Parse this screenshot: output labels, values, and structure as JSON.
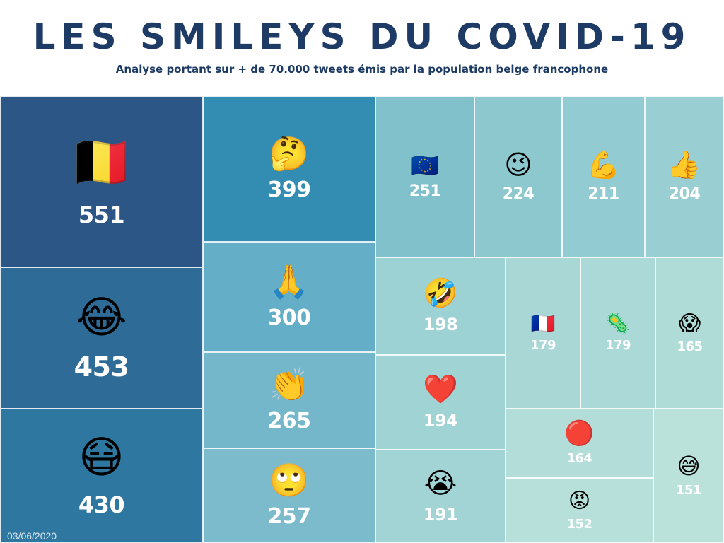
{
  "title": "LES SMILEYS DU COVID-19",
  "subtitle": "Analyse portant sur + de 70.000 tweets émis par la population belge francophone",
  "date": "03/06/2020",
  "chart_data": {
    "type": "treemap",
    "title": "LES SMILEYS DU COVID-19",
    "subtitle": "Analyse portant sur + de 70.000 tweets émis par la population belge francophone",
    "items": [
      {
        "emoji": "🇧🇪",
        "icon": "belgium-flag",
        "value": 551,
        "color": "#2b5686"
      },
      {
        "emoji": "😂",
        "icon": "tears-of-joy-face",
        "value": 453,
        "color": "#2f6b97"
      },
      {
        "emoji": "😷",
        "icon": "medical-mask-face",
        "value": 430,
        "color": "#2e77a0"
      },
      {
        "emoji": "🤔",
        "icon": "thinking-face",
        "value": 399,
        "color": "#338db2"
      },
      {
        "emoji": "🙏",
        "icon": "folded-hands",
        "value": 300,
        "color": "#65aec7"
      },
      {
        "emoji": "👏",
        "icon": "clapping-hands",
        "value": 265,
        "color": "#74b7ca"
      },
      {
        "emoji": "🙄",
        "icon": "eye-roll-face",
        "value": 257,
        "color": "#7cbbcb"
      },
      {
        "emoji": "🇪🇺",
        "icon": "eu-flag",
        "value": 251,
        "color": "#80c1cc"
      },
      {
        "emoji": "😉",
        "icon": "winking-face",
        "value": 224,
        "color": "#8ec8cf"
      },
      {
        "emoji": "💪",
        "icon": "flexed-biceps",
        "value": 211,
        "color": "#92cbd1"
      },
      {
        "emoji": "👍",
        "icon": "thumbs-up",
        "value": 204,
        "color": "#99cfd3"
      },
      {
        "emoji": "🤣",
        "icon": "rolling-laughing-face",
        "value": 198,
        "color": "#9dd2d4"
      },
      {
        "emoji": "❤️",
        "icon": "red-heart",
        "value": 194,
        "color": "#a0d3d4"
      },
      {
        "emoji": "😭",
        "icon": "crying-face",
        "value": 191,
        "color": "#a2d4d5"
      },
      {
        "emoji": "🇫🇷",
        "icon": "france-flag",
        "value": 179,
        "color": "#a8d7d6"
      },
      {
        "emoji": "🦠",
        "icon": "microbe",
        "value": 179,
        "color": "#abd9d7"
      },
      {
        "emoji": "😱",
        "icon": "screaming-face",
        "value": 165,
        "color": "#b0dcd8"
      },
      {
        "emoji": "🔴",
        "icon": "red-circle",
        "value": 164,
        "color": "#b2ddd8"
      },
      {
        "emoji": "😡",
        "icon": "angry-face",
        "value": 152,
        "color": "#b7e0da"
      },
      {
        "emoji": "😅",
        "icon": "sweat-smile-face",
        "value": 151,
        "color": "#bae2db"
      }
    ]
  }
}
